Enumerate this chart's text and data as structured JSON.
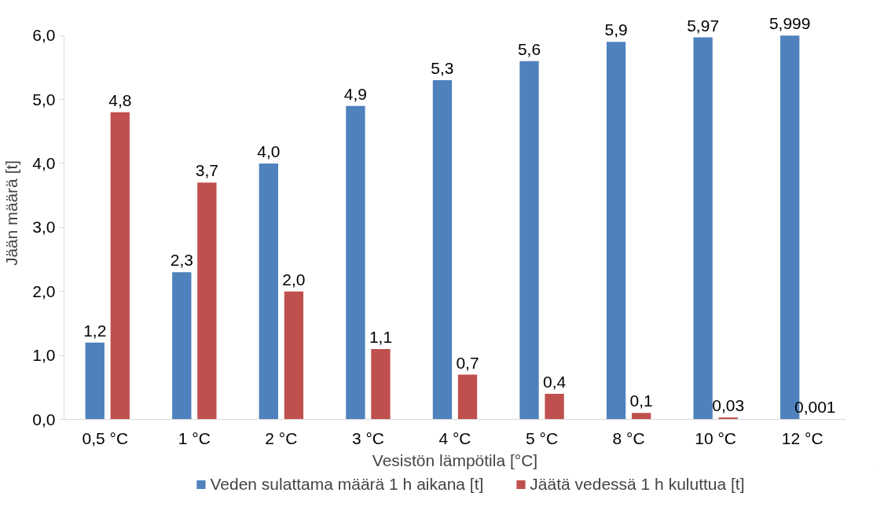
{
  "chart_data": {
    "type": "bar",
    "xlabel": "Vesistön lämpötila [°C]",
    "ylabel": "Jään määrä [t]",
    "categories": [
      "0,5  °C",
      "1 °C",
      "2 °C",
      "3 °C",
      "4 °C",
      "5 °C",
      "8 °C",
      "10 °C",
      "12 °C"
    ],
    "series": [
      {
        "name": "Veden sulattama määrä 1 h aikana [t]",
        "color": "#4f81bd",
        "values": [
          1.2,
          2.3,
          4.0,
          4.9,
          5.3,
          5.6,
          5.9,
          5.97,
          5.999
        ],
        "value_labels": [
          "1,2",
          "2,3",
          "4,0",
          "4,9",
          "5,3",
          "5,6",
          "5,9",
          "5,97",
          "5,999"
        ]
      },
      {
        "name": "Jäätä vedessä 1 h kuluttua [t]",
        "color": "#c0504d",
        "values": [
          4.8,
          3.7,
          2.0,
          1.1,
          0.7,
          0.4,
          0.1,
          0.03,
          0.001
        ],
        "value_labels": [
          "4,8",
          "3,7",
          "2,0",
          "1,1",
          "0,7",
          "0,4",
          "0,1",
          "0,03",
          "0,001"
        ]
      }
    ],
    "ylim": [
      0,
      6
    ],
    "yticks": [
      {
        "value": 0,
        "label": "0,0"
      },
      {
        "value": 1,
        "label": "1,0"
      },
      {
        "value": 2,
        "label": "2,0"
      },
      {
        "value": 3,
        "label": "3,0"
      },
      {
        "value": 4,
        "label": "4,0"
      },
      {
        "value": 5,
        "label": "5,0"
      },
      {
        "value": 6,
        "label": "6,0"
      }
    ],
    "grid": false,
    "legend": "bottom"
  }
}
